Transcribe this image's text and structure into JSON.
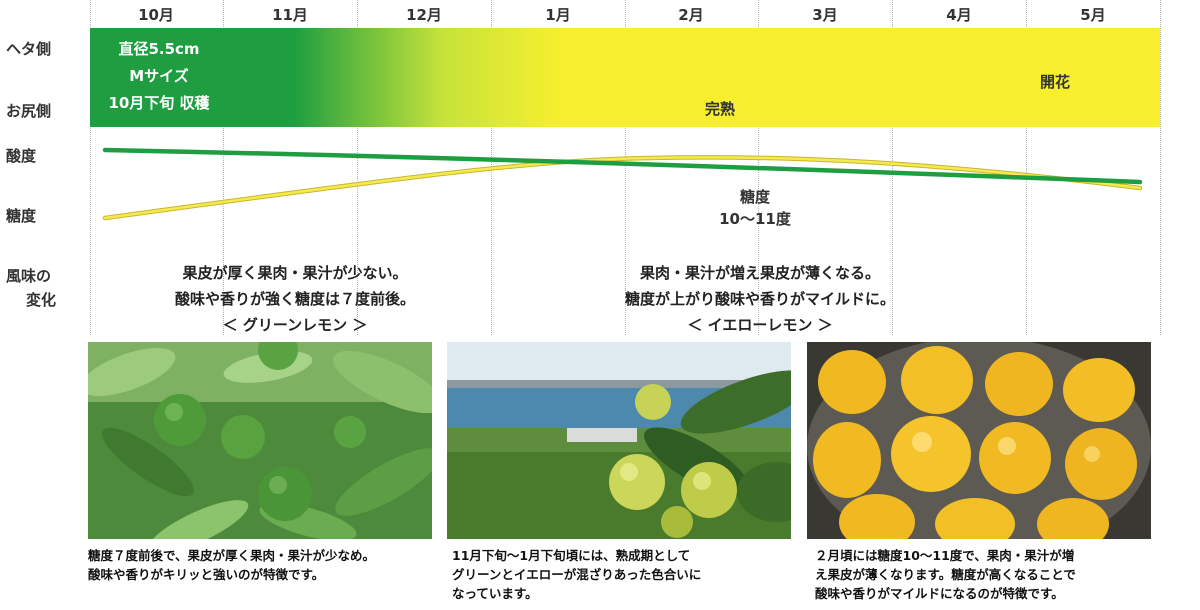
{
  "timeline": {
    "months": [
      "10月",
      "11月",
      "12月",
      "1月",
      "2月",
      "3月",
      "4月",
      "5月"
    ]
  },
  "row_labels": {
    "heta": "ヘタ側",
    "oshiri": "お尻側",
    "acidity": "酸度",
    "sugar": "糖度",
    "flavor_line1": "風味の",
    "flavor_line2": "変化"
  },
  "band": {
    "harvest_line1": "直径5.5cm",
    "harvest_line2": "Mサイズ",
    "harvest_line3": "10月下旬 収穫",
    "ripe": "完熟",
    "bloom": "開花",
    "colors": {
      "green": "#1e9e40",
      "yellow": "#f7ef2e"
    }
  },
  "chart_data": {
    "type": "line",
    "x": [
      "10月",
      "11月",
      "12月",
      "1月",
      "2月",
      "3月",
      "4月",
      "5月"
    ],
    "series": [
      {
        "name": "酸度",
        "color": "#1e9e40"
      },
      {
        "name": "糖度",
        "color": "#f2e43a"
      }
    ],
    "annotations": [
      {
        "line1": "糖度",
        "line2": "10〜11度"
      }
    ]
  },
  "flavor": {
    "green": {
      "line1": "果皮が厚く果肉・果汁が少ない。",
      "line2": "酸味や香りが強く糖度は７度前後。",
      "label": "＜ グリーンレモン ＞"
    },
    "yellow": {
      "line1": "果肉・果汁が増え果皮が薄くなる。",
      "line2": "糖度が上がり酸味や香りがマイルドに。",
      "label": "＜ イエローレモン ＞"
    }
  },
  "photos": [
    {
      "caption_line1": "糖度７度前後で、果皮が厚く果肉・果汁が少なめ。",
      "caption_line2": "酸味や香りがキリッと強いのが特徴です。",
      "caption_line3": ""
    },
    {
      "caption_line1": "11月下旬〜1月下旬頃には、熟成期として",
      "caption_line2": "グリーンとイエローが混ざりあった色合いに",
      "caption_line3": "なっています。"
    },
    {
      "caption_line1": "２月頃には糖度10〜11度で、果肉・果汁が増",
      "caption_line2": "え果皮が薄くなります。糖度が高くなることで",
      "caption_line3": "酸味や香りがマイルドになるのが特徴です。"
    }
  ]
}
